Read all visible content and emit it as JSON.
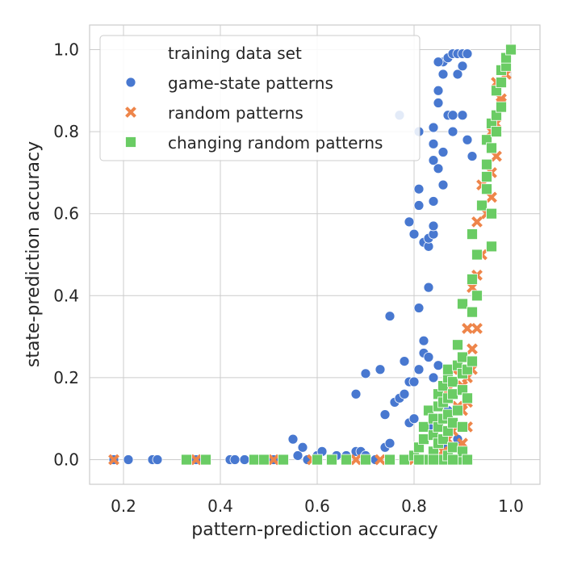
{
  "chart_data": {
    "type": "scatter",
    "xlabel": "pattern-prediction accuracy",
    "ylabel": "state-prediction accuracy",
    "xlim": [
      0.13,
      1.06
    ],
    "ylim": [
      -0.06,
      1.06
    ],
    "xticks": [
      0.2,
      0.4,
      0.6,
      0.8,
      1.0
    ],
    "yticks": [
      0.0,
      0.2,
      0.4,
      0.6,
      0.8,
      1.0
    ],
    "xtick_labels": [
      "0.2",
      "0.4",
      "0.6",
      "0.8",
      "1.0"
    ],
    "ytick_labels": [
      "0.0",
      "0.2",
      "0.4",
      "0.6",
      "0.8",
      "1.0"
    ],
    "grid": true,
    "legend": {
      "title": "training data set",
      "placement": "top-left"
    },
    "series": [
      {
        "name": "game-state patterns",
        "marker": "circle",
        "color": "#4878d0",
        "points": [
          [
            0.18,
            0.0
          ],
          [
            0.21,
            0.0
          ],
          [
            0.26,
            0.0
          ],
          [
            0.27,
            0.0
          ],
          [
            0.35,
            0.0
          ],
          [
            0.36,
            0.0
          ],
          [
            0.42,
            0.0
          ],
          [
            0.43,
            0.0
          ],
          [
            0.45,
            0.0
          ],
          [
            0.51,
            0.0
          ],
          [
            0.53,
            0.0
          ],
          [
            0.55,
            0.05
          ],
          [
            0.56,
            0.01
          ],
          [
            0.57,
            0.03
          ],
          [
            0.58,
            0.0
          ],
          [
            0.6,
            0.01
          ],
          [
            0.61,
            0.02
          ],
          [
            0.64,
            0.01
          ],
          [
            0.66,
            0.01
          ],
          [
            0.68,
            0.02
          ],
          [
            0.69,
            0.02
          ],
          [
            0.7,
            0.01
          ],
          [
            0.72,
            0.0
          ],
          [
            0.74,
            0.03
          ],
          [
            0.75,
            0.04
          ],
          [
            0.68,
            0.16
          ],
          [
            0.7,
            0.21
          ],
          [
            0.73,
            0.22
          ],
          [
            0.74,
            0.11
          ],
          [
            0.75,
            0.35
          ],
          [
            0.76,
            0.14
          ],
          [
            0.77,
            0.15
          ],
          [
            0.78,
            0.16
          ],
          [
            0.78,
            0.24
          ],
          [
            0.79,
            0.19
          ],
          [
            0.79,
            0.09
          ],
          [
            0.8,
            0.19
          ],
          [
            0.8,
            0.1
          ],
          [
            0.81,
            0.22
          ],
          [
            0.82,
            0.29
          ],
          [
            0.82,
            0.26
          ],
          [
            0.83,
            0.25
          ],
          [
            0.83,
            0.42
          ],
          [
            0.81,
            0.37
          ],
          [
            0.79,
            0.58
          ],
          [
            0.8,
            0.55
          ],
          [
            0.81,
            0.62
          ],
          [
            0.81,
            0.66
          ],
          [
            0.81,
            0.8
          ],
          [
            0.82,
            0.53
          ],
          [
            0.83,
            0.52
          ],
          [
            0.83,
            0.54
          ],
          [
            0.84,
            0.55
          ],
          [
            0.84,
            0.57
          ],
          [
            0.84,
            0.63
          ],
          [
            0.84,
            0.73
          ],
          [
            0.84,
            0.77
          ],
          [
            0.84,
            0.81
          ],
          [
            0.85,
            0.71
          ],
          [
            0.85,
            0.87
          ],
          [
            0.85,
            0.9
          ],
          [
            0.86,
            0.67
          ],
          [
            0.86,
            0.75
          ],
          [
            0.86,
            0.94
          ],
          [
            0.86,
            0.97
          ],
          [
            0.85,
            0.97
          ],
          [
            0.87,
            0.84
          ],
          [
            0.87,
            0.98
          ],
          [
            0.88,
            0.99
          ],
          [
            0.88,
            0.84
          ],
          [
            0.88,
            0.8
          ],
          [
            0.89,
            0.99
          ],
          [
            0.89,
            0.94
          ],
          [
            0.9,
            0.99
          ],
          [
            0.9,
            0.96
          ],
          [
            0.9,
            0.84
          ],
          [
            0.91,
            0.78
          ],
          [
            0.91,
            0.99
          ],
          [
            0.92,
            0.74
          ],
          [
            0.77,
            0.84
          ],
          [
            0.86,
            0.15
          ],
          [
            0.87,
            0.12
          ],
          [
            0.88,
            0.08
          ],
          [
            0.89,
            0.05
          ],
          [
            0.84,
            0.2
          ],
          [
            0.85,
            0.23
          ],
          [
            0.83,
            0.08
          ],
          [
            0.86,
            0.03
          ]
        ]
      },
      {
        "name": "random patterns",
        "marker": "x",
        "color": "#ee854a",
        "points": [
          [
            0.18,
            0.0
          ],
          [
            0.35,
            0.0
          ],
          [
            0.51,
            0.0
          ],
          [
            0.59,
            0.0
          ],
          [
            0.68,
            0.0
          ],
          [
            0.73,
            0.0
          ],
          [
            0.78,
            0.0
          ],
          [
            0.8,
            0.0
          ],
          [
            0.83,
            0.0
          ],
          [
            0.85,
            0.01
          ],
          [
            0.86,
            0.02
          ],
          [
            0.87,
            0.05
          ],
          [
            0.88,
            0.07
          ],
          [
            0.89,
            0.03
          ],
          [
            0.9,
            0.04
          ],
          [
            0.91,
            0.08
          ],
          [
            0.9,
            0.12
          ],
          [
            0.91,
            0.14
          ],
          [
            0.9,
            0.18
          ],
          [
            0.91,
            0.2
          ],
          [
            0.92,
            0.22
          ],
          [
            0.92,
            0.27
          ],
          [
            0.91,
            0.32
          ],
          [
            0.93,
            0.32
          ],
          [
            0.92,
            0.42
          ],
          [
            0.93,
            0.45
          ],
          [
            0.94,
            0.5
          ],
          [
            0.93,
            0.58
          ],
          [
            0.95,
            0.6
          ],
          [
            0.94,
            0.67
          ],
          [
            0.96,
            0.7
          ],
          [
            0.96,
            0.64
          ],
          [
            0.97,
            0.74
          ],
          [
            0.96,
            0.8
          ],
          [
            0.97,
            0.82
          ],
          [
            0.98,
            0.87
          ],
          [
            0.97,
            0.92
          ],
          [
            0.98,
            0.88
          ],
          [
            0.99,
            0.97
          ],
          [
            0.99,
            0.94
          ],
          [
            1.0,
            1.0
          ],
          [
            0.85,
            0.09
          ],
          [
            0.87,
            0.17
          ],
          [
            0.88,
            0.22
          ],
          [
            0.89,
            0.13
          ]
        ]
      },
      {
        "name": "changing random patterns",
        "marker": "square",
        "color": "#6acc64",
        "points": [
          [
            0.33,
            0.0
          ],
          [
            0.37,
            0.0
          ],
          [
            0.47,
            0.0
          ],
          [
            0.49,
            0.0
          ],
          [
            0.53,
            0.0
          ],
          [
            0.6,
            0.0
          ],
          [
            0.63,
            0.0
          ],
          [
            0.66,
            0.0
          ],
          [
            0.7,
            0.0
          ],
          [
            0.75,
            0.0
          ],
          [
            0.78,
            0.0
          ],
          [
            0.8,
            0.01
          ],
          [
            0.81,
            0.03
          ],
          [
            0.82,
            0.05
          ],
          [
            0.82,
            0.08
          ],
          [
            0.83,
            0.0
          ],
          [
            0.83,
            0.12
          ],
          [
            0.84,
            0.02
          ],
          [
            0.84,
            0.06
          ],
          [
            0.84,
            0.1
          ],
          [
            0.85,
            0.04
          ],
          [
            0.85,
            0.08
          ],
          [
            0.85,
            0.13
          ],
          [
            0.85,
            0.16
          ],
          [
            0.86,
            0.0
          ],
          [
            0.86,
            0.05
          ],
          [
            0.86,
            0.1
          ],
          [
            0.86,
            0.14
          ],
          [
            0.86,
            0.18
          ],
          [
            0.87,
            0.01
          ],
          [
            0.87,
            0.07
          ],
          [
            0.87,
            0.11
          ],
          [
            0.87,
            0.15
          ],
          [
            0.87,
            0.2
          ],
          [
            0.87,
            0.22
          ],
          [
            0.88,
            0.03
          ],
          [
            0.88,
            0.09
          ],
          [
            0.88,
            0.16
          ],
          [
            0.88,
            0.19
          ],
          [
            0.89,
            0.0
          ],
          [
            0.89,
            0.12
          ],
          [
            0.89,
            0.23
          ],
          [
            0.89,
            0.28
          ],
          [
            0.9,
            0.02
          ],
          [
            0.9,
            0.08
          ],
          [
            0.9,
            0.17
          ],
          [
            0.9,
            0.21
          ],
          [
            0.9,
            0.25
          ],
          [
            0.9,
            0.38
          ],
          [
            0.91,
            0.15
          ],
          [
            0.91,
            0.22
          ],
          [
            0.92,
            0.24
          ],
          [
            0.92,
            0.36
          ],
          [
            0.92,
            0.44
          ],
          [
            0.92,
            0.55
          ],
          [
            0.93,
            0.4
          ],
          [
            0.93,
            0.5
          ],
          [
            0.94,
            0.62
          ],
          [
            0.95,
            0.66
          ],
          [
            0.95,
            0.69
          ],
          [
            0.95,
            0.72
          ],
          [
            0.95,
            0.78
          ],
          [
            0.96,
            0.52
          ],
          [
            0.96,
            0.6
          ],
          [
            0.96,
            0.76
          ],
          [
            0.96,
            0.82
          ],
          [
            0.97,
            0.8
          ],
          [
            0.97,
            0.84
          ],
          [
            0.97,
            0.9
          ],
          [
            0.98,
            0.86
          ],
          [
            0.98,
            0.92
          ],
          [
            0.98,
            0.95
          ],
          [
            0.99,
            0.96
          ],
          [
            0.99,
            0.98
          ],
          [
            1.0,
            1.0
          ],
          [
            0.81,
            0.0
          ],
          [
            0.84,
            0.0
          ],
          [
            0.88,
            0.0
          ],
          [
            0.91,
            0.0
          ]
        ]
      }
    ]
  }
}
